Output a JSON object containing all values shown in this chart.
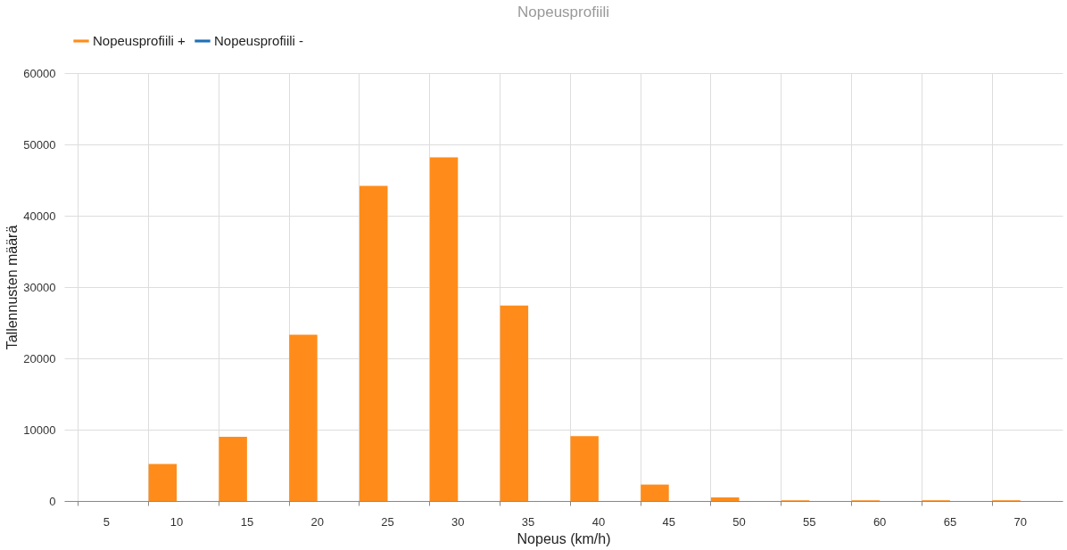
{
  "chart_data": {
    "type": "bar",
    "title": "Nopeusprofiili",
    "xlabel": "Nopeus (km/h)",
    "ylabel": "Tallennusten määrä",
    "categories": [
      "5",
      "10",
      "15",
      "20",
      "25",
      "30",
      "35",
      "40",
      "45",
      "50",
      "55",
      "60",
      "65",
      "70"
    ],
    "series": [
      {
        "name": "Nopeusprofiili +",
        "color": "#ff8c1a",
        "values": [
          0,
          5200,
          9000,
          23300,
          44200,
          48200,
          27400,
          9100,
          2300,
          500,
          100,
          100,
          100,
          100
        ]
      },
      {
        "name": "Nopeusprofiili -",
        "color": "#1f6fb5",
        "values": [
          0,
          0,
          0,
          0,
          0,
          0,
          0,
          0,
          0,
          0,
          0,
          0,
          0,
          0
        ]
      }
    ],
    "ylim": [
      0,
      60000
    ],
    "yticks": [
      0,
      10000,
      20000,
      30000,
      40000,
      50000,
      60000
    ],
    "grid": true,
    "legend": "top"
  }
}
